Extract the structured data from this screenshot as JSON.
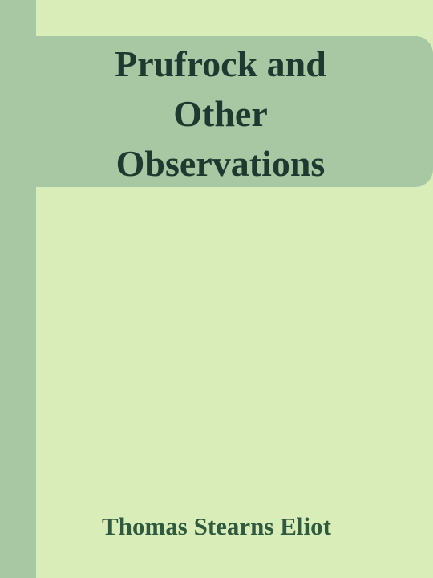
{
  "cover": {
    "title_lines": [
      "Prufrock and",
      "Other",
      "Observations"
    ],
    "author": "Thomas Stearns Eliot"
  },
  "colors": {
    "background": "#d9edb8",
    "band": "#a7c8a2",
    "title_text": "#1e3a30",
    "author_text": "#2f5a40"
  }
}
